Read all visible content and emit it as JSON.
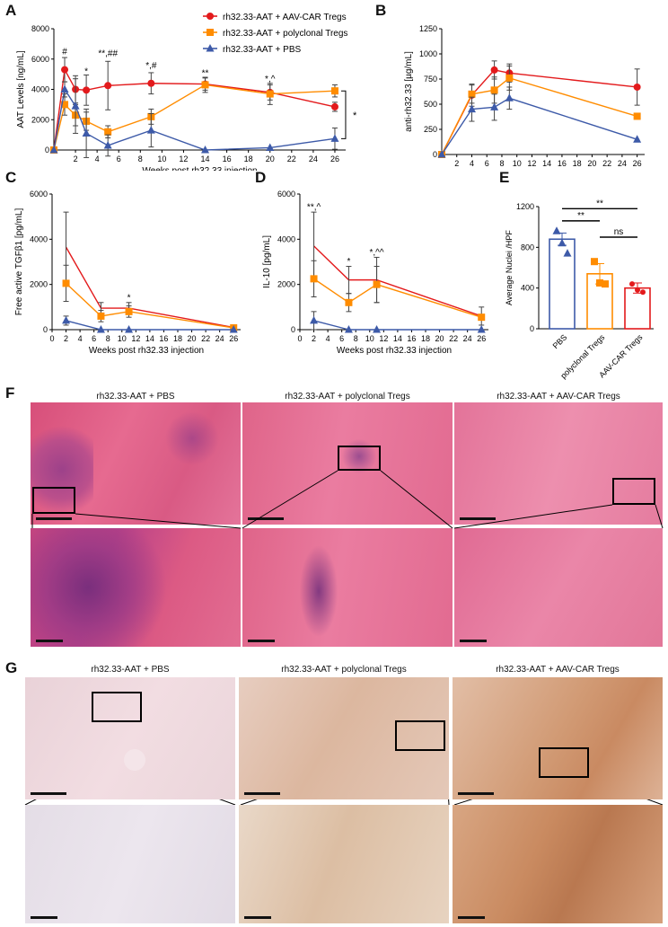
{
  "panels": {
    "A": {
      "letter": "A"
    },
    "B": {
      "letter": "B"
    },
    "C": {
      "letter": "C"
    },
    "D": {
      "letter": "D"
    },
    "E": {
      "letter": "E"
    },
    "F": {
      "letter": "F"
    },
    "G": {
      "letter": "G"
    }
  },
  "colors": {
    "car": "#e31a1c",
    "poly": "#ff8c00",
    "pbs": "#3d5aa8"
  },
  "chart_data": [
    {
      "id": "A",
      "type": "line",
      "ylabel": "AAT Levels [ng/mL]",
      "xlabel": "Weeks post rh32.33 injection",
      "xlim": [
        0,
        27
      ],
      "ylim": [
        0,
        8000
      ],
      "xticks": [
        2,
        4,
        6,
        8,
        10,
        12,
        14,
        16,
        18,
        20,
        22,
        24,
        26
      ],
      "yticks": [
        0,
        2000,
        4000,
        6000,
        8000
      ],
      "legend": [
        "rh32.33-AAT + AAV-CAR Tregs",
        "rh32.33-AAT + polyclonal Tregs",
        "rh32.33-AAT + PBS"
      ],
      "series": [
        {
          "name": "rh32.33-AAT + AAV-CAR Tregs",
          "color": "#e31a1c",
          "marker": "circle",
          "x": [
            0,
            1,
            2,
            3,
            5,
            9,
            14,
            20,
            26
          ],
          "y": [
            0,
            5300,
            4000,
            3950,
            4250,
            4400,
            4350,
            3800,
            2850
          ],
          "err": [
            0,
            800,
            900,
            1000,
            1600,
            700,
            400,
            500,
            300
          ]
        },
        {
          "name": "rh32.33-AAT + polyclonal Tregs",
          "color": "#ff8c00",
          "marker": "square",
          "x": [
            0,
            1,
            2,
            3,
            5,
            9,
            14,
            20,
            26
          ],
          "y": [
            0,
            3000,
            2300,
            1900,
            1200,
            2200,
            4300,
            3700,
            3900
          ],
          "err": [
            0,
            700,
            700,
            600,
            400,
            500,
            500,
            700,
            400
          ]
        },
        {
          "name": "rh32.33-AAT + PBS",
          "color": "#3d5aa8",
          "marker": "triangle",
          "x": [
            0,
            1,
            2,
            3,
            5,
            9,
            14,
            20,
            26
          ],
          "y": [
            0,
            4000,
            2900,
            1100,
            300,
            1300,
            0,
            150,
            750
          ],
          "err": [
            0,
            500,
            1800,
            1600,
            700,
            1100,
            0,
            0,
            700
          ]
        }
      ],
      "annotations": [
        {
          "text": "#",
          "x": 1,
          "y": 6300
        },
        {
          "text": "*",
          "x": 3,
          "y": 5000
        },
        {
          "text": "**,##",
          "x": 5,
          "y": 6200
        },
        {
          "text": "*,#",
          "x": 9,
          "y": 5400
        },
        {
          "text": "**",
          "x": 14,
          "y": 4900
        },
        {
          "text": "*,^",
          "x": 20,
          "y": 4500
        }
      ],
      "bracket_label": "*"
    },
    {
      "id": "B",
      "type": "line",
      "ylabel": "anti-rh32.33 [µg/mL]",
      "xlabel": "Weeks post rh32.33 injection",
      "xlim": [
        0,
        27
      ],
      "ylim": [
        0,
        1250
      ],
      "xticks": [
        2,
        4,
        6,
        8,
        10,
        12,
        14,
        16,
        18,
        20,
        22,
        24,
        26
      ],
      "yticks": [
        0,
        250,
        500,
        750,
        1000,
        1250
      ],
      "series": [
        {
          "name": "rh32.33-AAT + AAV-CAR Tregs",
          "color": "#e31a1c",
          "marker": "circle",
          "x": [
            0,
            4,
            7,
            9,
            26
          ],
          "y": [
            0,
            590,
            840,
            810,
            670
          ],
          "err": [
            0,
            110,
            90,
            90,
            180
          ]
        },
        {
          "name": "rh32.33-AAT + polyclonal Tregs",
          "color": "#ff8c00",
          "marker": "square",
          "x": [
            0,
            4,
            7,
            9,
            26
          ],
          "y": [
            0,
            600,
            640,
            760,
            380
          ],
          "err": [
            0,
            90,
            130,
            120,
            0
          ]
        },
        {
          "name": "rh32.33-AAT + PBS",
          "color": "#3d5aa8",
          "marker": "triangle",
          "x": [
            0,
            4,
            7,
            9,
            26
          ],
          "y": [
            0,
            450,
            470,
            560,
            150
          ],
          "err": [
            0,
            120,
            130,
            110,
            0
          ]
        }
      ]
    },
    {
      "id": "C",
      "type": "line",
      "ylabel": "Free active TGFβ1 [pg/mL]",
      "xlabel": "Weeks post rh32.33 injection",
      "xlim": [
        0,
        27
      ],
      "ylim": [
        0,
        6000
      ],
      "xticks": [
        0,
        2,
        4,
        6,
        8,
        10,
        12,
        14,
        16,
        18,
        20,
        22,
        24,
        26
      ],
      "yticks": [
        0,
        2000,
        4000,
        6000
      ],
      "series": [
        {
          "name": "rh32.33-AAT + AAV-CAR Tregs",
          "color": "#e31a1c",
          "marker": "none",
          "x": [
            2,
            7,
            11,
            26
          ],
          "y": [
            3650,
            950,
            950,
            100
          ],
          "err": [
            1550,
            250,
            250,
            0
          ]
        },
        {
          "name": "rh32.33-AAT + polyclonal Tregs",
          "color": "#ff8c00",
          "marker": "square",
          "x": [
            2,
            7,
            11,
            26
          ],
          "y": [
            2050,
            600,
            800,
            80
          ],
          "err": [
            800,
            250,
            250,
            0
          ]
        },
        {
          "name": "rh32.33-AAT + PBS",
          "color": "#3d5aa8",
          "marker": "triangle",
          "x": [
            2,
            7,
            11,
            26
          ],
          "y": [
            400,
            0,
            0,
            0
          ],
          "err": [
            200,
            0,
            0,
            0
          ]
        }
      ],
      "annotations": [
        {
          "text": "*",
          "x": 11,
          "y": 1300
        }
      ]
    },
    {
      "id": "D",
      "type": "line",
      "ylabel": "IL-10 [pg/mL]",
      "xlabel": "Weeks post rh32.33 injection",
      "xlim": [
        0,
        27
      ],
      "ylim": [
        0,
        6000
      ],
      "xticks": [
        0,
        2,
        4,
        6,
        8,
        10,
        12,
        14,
        16,
        18,
        20,
        22,
        24,
        26
      ],
      "yticks": [
        0,
        2000,
        4000,
        6000
      ],
      "series": [
        {
          "name": "rh32.33-AAT + AAV-CAR Tregs",
          "color": "#e31a1c",
          "marker": "none",
          "x": [
            2,
            7,
            11,
            26
          ],
          "y": [
            3700,
            2200,
            2200,
            600
          ],
          "err": [
            1500,
            600,
            1000,
            400
          ]
        },
        {
          "name": "rh32.33-AAT + polyclonal Tregs",
          "color": "#ff8c00",
          "marker": "square",
          "x": [
            2,
            7,
            11,
            26
          ],
          "y": [
            2250,
            1200,
            2000,
            550
          ],
          "err": [
            800,
            400,
            800,
            0
          ]
        },
        {
          "name": "rh32.33-AAT + PBS",
          "color": "#3d5aa8",
          "marker": "triangle",
          "x": [
            2,
            7,
            11,
            26
          ],
          "y": [
            400,
            0,
            0,
            0
          ],
          "err": [
            400,
            0,
            0,
            0
          ]
        }
      ],
      "annotations": [
        {
          "text": "**,^",
          "x": 2,
          "y": 5300
        },
        {
          "text": "*",
          "x": 7,
          "y": 2900
        },
        {
          "text": "*,^^",
          "x": 11,
          "y": 3300
        }
      ]
    },
    {
      "id": "E",
      "type": "bar",
      "ylabel": "Average Nuclei /HPF",
      "categories": [
        "PBS",
        "polyclonal Tregs",
        "AAV-CAR Tregs"
      ],
      "values": [
        880,
        540,
        400
      ],
      "err": [
        60,
        100,
        50
      ],
      "points": [
        [
          960,
          840,
          740
        ],
        [
          660,
          450,
          440
        ],
        [
          440,
          380,
          360
        ]
      ],
      "colors": [
        "#3d5aa8",
        "#ff8c00",
        "#e31a1c"
      ],
      "ylim": [
        0,
        1200
      ],
      "yticks": [
        0,
        400,
        800,
        1200
      ],
      "significance": [
        {
          "from": 0,
          "to": 1,
          "label": "**"
        },
        {
          "from": 0,
          "to": 2,
          "label": "**"
        },
        {
          "from": 1,
          "to": 2,
          "label": "ns"
        }
      ]
    }
  ],
  "histology": {
    "F": {
      "titles": [
        "rh32.33-AAT + PBS",
        "rh32.33-AAT + polyclonal Tregs",
        "rh32.33-AAT + AAV-CAR Tregs"
      ]
    },
    "G": {
      "titles": [
        "rh32.33-AAT + PBS",
        "rh32.33-AAT + polyclonal Tregs",
        "rh32.33-AAT + AAV-CAR Tregs"
      ]
    }
  }
}
